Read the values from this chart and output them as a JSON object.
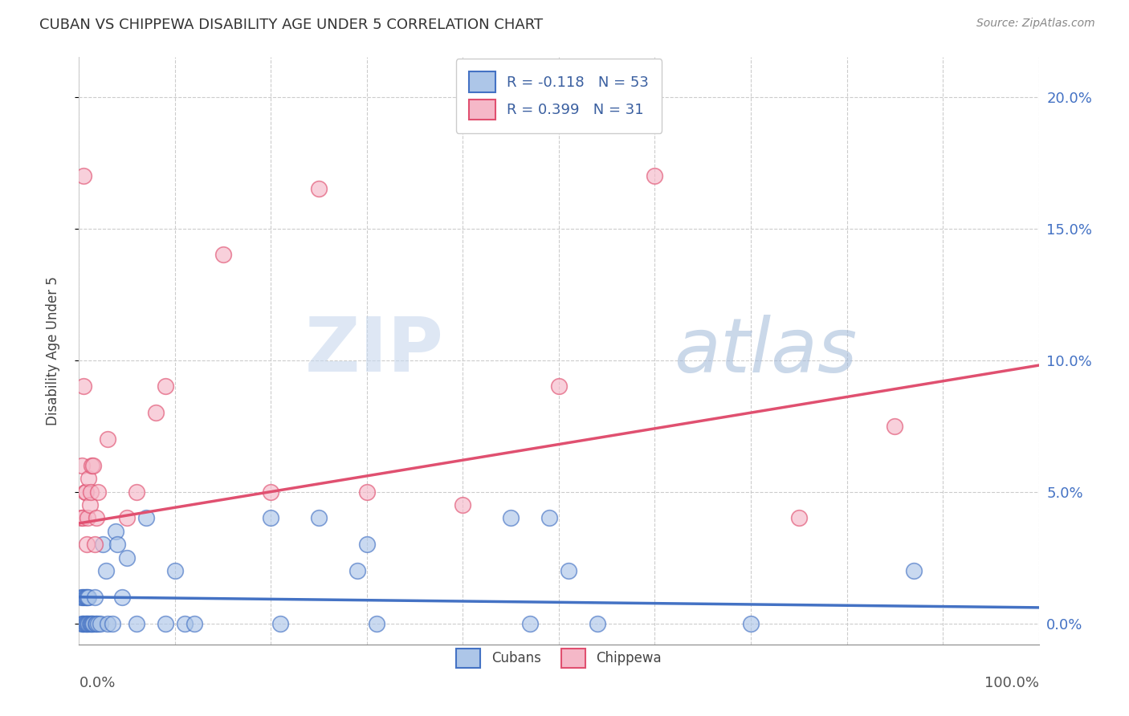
{
  "title": "CUBAN VS CHIPPEWA DISABILITY AGE UNDER 5 CORRELATION CHART",
  "source": "Source: ZipAtlas.com",
  "ylabel": "Disability Age Under 5",
  "xlim": [
    0,
    1.0
  ],
  "ylim": [
    -0.008,
    0.215
  ],
  "yticks": [
    0.0,
    0.05,
    0.1,
    0.15,
    0.2
  ],
  "ytick_labels": [
    "",
    "",
    "",
    "",
    ""
  ],
  "ytick_labels_right": [
    "0.0%",
    "5.0%",
    "10.0%",
    "15.0%",
    "20.0%"
  ],
  "xticks": [
    0.0,
    0.1,
    0.2,
    0.3,
    0.4,
    0.5,
    0.6,
    0.7,
    0.8,
    0.9,
    1.0
  ],
  "cubans_R": -0.118,
  "cubans_N": 53,
  "chippewa_R": 0.399,
  "chippewa_N": 31,
  "cubans_color": "#adc6e8",
  "chippewa_color": "#f5b8c8",
  "trendline_cubans_color": "#4472c4",
  "trendline_chippewa_color": "#e05070",
  "background_color": "#ffffff",
  "watermark_zip": "ZIP",
  "watermark_atlas": "atlas",
  "cubans_x": [
    0.002,
    0.003,
    0.004,
    0.004,
    0.005,
    0.005,
    0.006,
    0.006,
    0.007,
    0.007,
    0.008,
    0.008,
    0.009,
    0.009,
    0.01,
    0.01,
    0.011,
    0.012,
    0.013,
    0.014,
    0.015,
    0.016,
    0.017,
    0.018,
    0.02,
    0.022,
    0.025,
    0.028,
    0.03,
    0.035,
    0.038,
    0.04,
    0.045,
    0.05,
    0.06,
    0.07,
    0.09,
    0.1,
    0.11,
    0.12,
    0.2,
    0.21,
    0.25,
    0.29,
    0.3,
    0.31,
    0.45,
    0.47,
    0.49,
    0.51,
    0.54,
    0.7,
    0.87
  ],
  "cubans_y": [
    0.01,
    0.0,
    0.0,
    0.01,
    0.0,
    0.01,
    0.0,
    0.01,
    0.0,
    0.01,
    0.0,
    0.01,
    0.0,
    0.01,
    0.0,
    0.01,
    0.0,
    0.0,
    0.0,
    0.0,
    0.0,
    0.01,
    0.0,
    0.0,
    0.0,
    0.0,
    0.03,
    0.02,
    0.0,
    0.0,
    0.035,
    0.03,
    0.01,
    0.025,
    0.0,
    0.04,
    0.0,
    0.02,
    0.0,
    0.0,
    0.04,
    0.0,
    0.04,
    0.02,
    0.03,
    0.0,
    0.04,
    0.0,
    0.04,
    0.02,
    0.0,
    0.0,
    0.02
  ],
  "chippewa_x": [
    0.002,
    0.003,
    0.004,
    0.005,
    0.005,
    0.006,
    0.007,
    0.008,
    0.009,
    0.01,
    0.011,
    0.012,
    0.013,
    0.015,
    0.016,
    0.018,
    0.02,
    0.03,
    0.05,
    0.06,
    0.08,
    0.09,
    0.15,
    0.2,
    0.25,
    0.3,
    0.4,
    0.5,
    0.6,
    0.75,
    0.85
  ],
  "chippewa_y": [
    0.04,
    0.06,
    0.04,
    0.09,
    0.17,
    0.05,
    0.05,
    0.03,
    0.04,
    0.055,
    0.045,
    0.05,
    0.06,
    0.06,
    0.03,
    0.04,
    0.05,
    0.07,
    0.04,
    0.05,
    0.08,
    0.09,
    0.14,
    0.05,
    0.165,
    0.05,
    0.045,
    0.09,
    0.17,
    0.04,
    0.075
  ],
  "chippewa_trendline_x0": 0.0,
  "chippewa_trendline_y0": 0.038,
  "chippewa_trendline_x1": 1.0,
  "chippewa_trendline_y1": 0.098,
  "cubans_trendline_x0": 0.0,
  "cubans_trendline_y0": 0.01,
  "cubans_trendline_x1": 1.0,
  "cubans_trendline_y1": 0.006
}
